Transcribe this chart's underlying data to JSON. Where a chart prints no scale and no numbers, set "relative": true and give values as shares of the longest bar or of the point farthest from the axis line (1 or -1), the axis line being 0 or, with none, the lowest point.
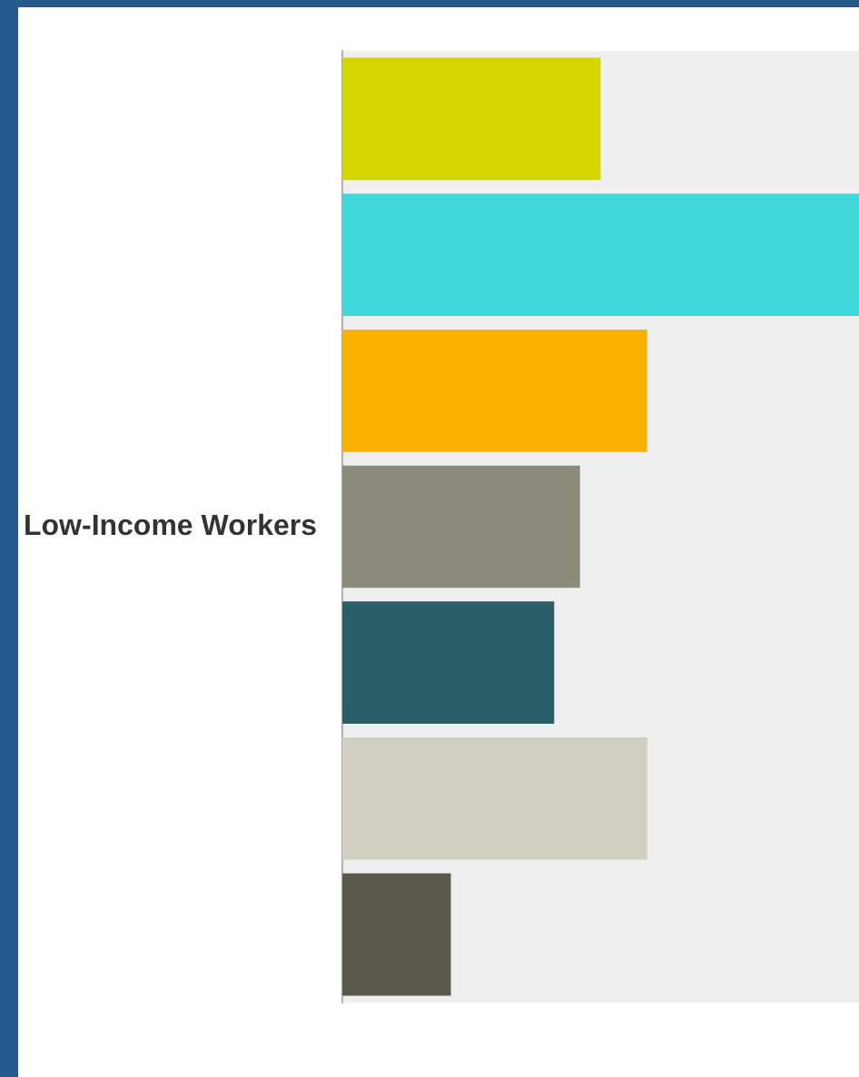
{
  "chart_data": {
    "type": "bar",
    "orientation": "horizontal",
    "relative": true,
    "ylabel": "Low-Income Workers",
    "categories": [
      null,
      null,
      null,
      null,
      null,
      null,
      null
    ],
    "values": [
      0.5,
      1,
      0.59,
      0.46,
      0.41,
      0.59,
      0.21
    ],
    "colors": [
      "#d4d600",
      "#3ed8da",
      "#f9b000",
      "#8a8a7a",
      "#2a5f6a",
      "#d0cfc0",
      "#5b5a4a"
    ]
  }
}
